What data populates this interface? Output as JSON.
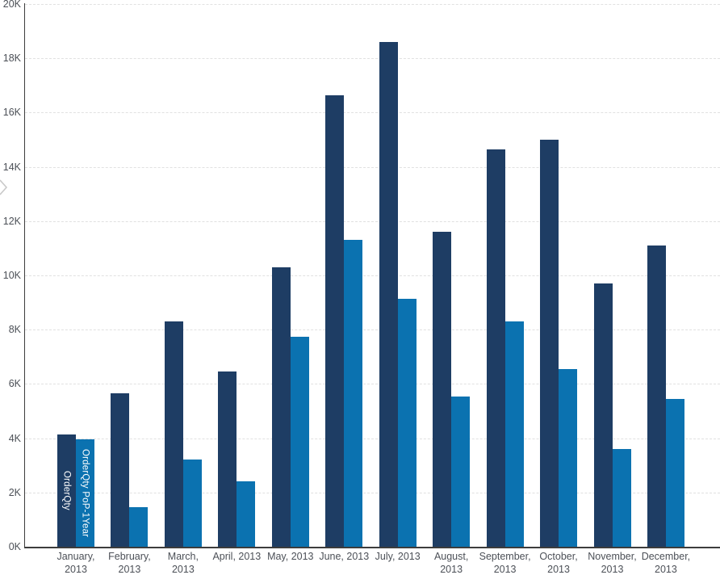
{
  "chart_data": {
    "type": "bar",
    "title": "",
    "xlabel": "",
    "ylabel": "",
    "categories": [
      "January, 2013",
      "February, 2013",
      "March, 2013",
      "April, 2013",
      "May, 2013",
      "June, 2013",
      "July, 2013",
      "August, 2013",
      "September, 2013",
      "October, 2013",
      "November, 2013",
      "December, 2013"
    ],
    "category_display_labels": [
      "January,\n2013",
      "February,\n2013",
      "March,\n2013",
      "April, 2013",
      "May, 2013",
      "June, 2013",
      "July, 2013",
      "August,\n2013",
      "September,\n2013",
      "October,\n2013",
      "November,\n2013",
      "December,\n2013"
    ],
    "series": [
      {
        "name": "OrderQty",
        "color": "#1e3d64",
        "values": [
          4150,
          5650,
          8300,
          6450,
          10300,
          16650,
          18600,
          11600,
          14650,
          15000,
          9700,
          11100
        ]
      },
      {
        "name": "OrderQty PoP-1Year",
        "color": "#0b72b0",
        "values": [
          3950,
          1450,
          3200,
          2400,
          7750,
          11300,
          9150,
          5550,
          8300,
          6550,
          3600,
          5450
        ]
      }
    ],
    "ylim": [
      0,
      20000
    ],
    "y_tick_step": 2000,
    "y_tick_labels": [
      "0K",
      "2K",
      "4K",
      "6K",
      "8K",
      "10K",
      "12K",
      "14K",
      "16K",
      "18K",
      "20K"
    ],
    "grid": "horizontal-dashed",
    "legend_position": "series labels drawn vertically inside first category bars"
  },
  "colors": {
    "background": "#ffffff",
    "axis_line": "#3d3d3d",
    "gridline": "#e1e1e1",
    "tick_text": "#4c5057",
    "bar_dark": "#1e3d64",
    "bar_light": "#0b72b0",
    "chevron": "#c9c9c9"
  },
  "icons": {
    "pane_chevron": "chevron-right"
  }
}
